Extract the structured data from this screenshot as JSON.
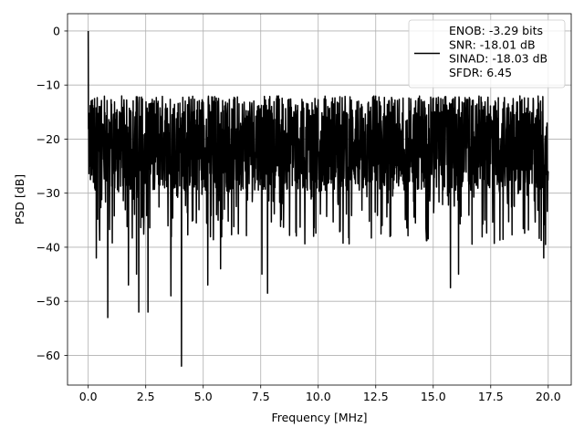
{
  "chart_data": {
    "type": "line",
    "title": "",
    "xlabel": "Frequency [MHz]",
    "ylabel": "PSD [dB]",
    "xlim": [
      -0.9,
      21.0
    ],
    "ylim": [
      -65.5,
      3.2
    ],
    "xticks": [
      0.0,
      2.5,
      5.0,
      7.5,
      10.0,
      12.5,
      15.0,
      17.5,
      20.0
    ],
    "xtick_labels": [
      "0.0",
      "2.5",
      "5.0",
      "7.5",
      "10.0",
      "12.5",
      "15.0",
      "17.5",
      "20.0"
    ],
    "yticks": [
      0,
      -10,
      -20,
      -30,
      -40,
      -50,
      -60
    ],
    "ytick_labels": [
      "0",
      "−10",
      "−20",
      "−30",
      "−40",
      "−50",
      "−60"
    ],
    "grid": true,
    "legend_placement": "top-right",
    "line_color": "#000000",
    "series": [
      {
        "legend_lines": [
          "ENOB: -3.29 bits",
          "SNR: -18.01 dB",
          "SINAD: -18.03 dB",
          "SFDR: 6.45"
        ],
        "x_range": [
          0.0,
          20.0
        ],
        "n_points": 2048,
        "noise_floor_db": -22.5,
        "noise_max_db": -12,
        "peaks": [
          {
            "x": 0.0,
            "y": 0.0
          }
        ],
        "deep_nulls": [
          {
            "x": 0.08,
            "y": -25
          },
          {
            "x": 0.22,
            "y": -28
          },
          {
            "x": 0.35,
            "y": -42
          },
          {
            "x": 0.85,
            "y": -53
          },
          {
            "x": 1.75,
            "y": -47
          },
          {
            "x": 2.1,
            "y": -45
          },
          {
            "x": 2.2,
            "y": -52
          },
          {
            "x": 2.6,
            "y": -52
          },
          {
            "x": 3.6,
            "y": -49
          },
          {
            "x": 4.05,
            "y": -62
          },
          {
            "x": 5.2,
            "y": -47
          },
          {
            "x": 5.75,
            "y": -44
          },
          {
            "x": 7.55,
            "y": -45
          },
          {
            "x": 7.8,
            "y": -48.5
          },
          {
            "x": 15.75,
            "y": -47.5
          },
          {
            "x": 16.1,
            "y": -45
          },
          {
            "x": 19.8,
            "y": -42
          }
        ]
      }
    ]
  }
}
